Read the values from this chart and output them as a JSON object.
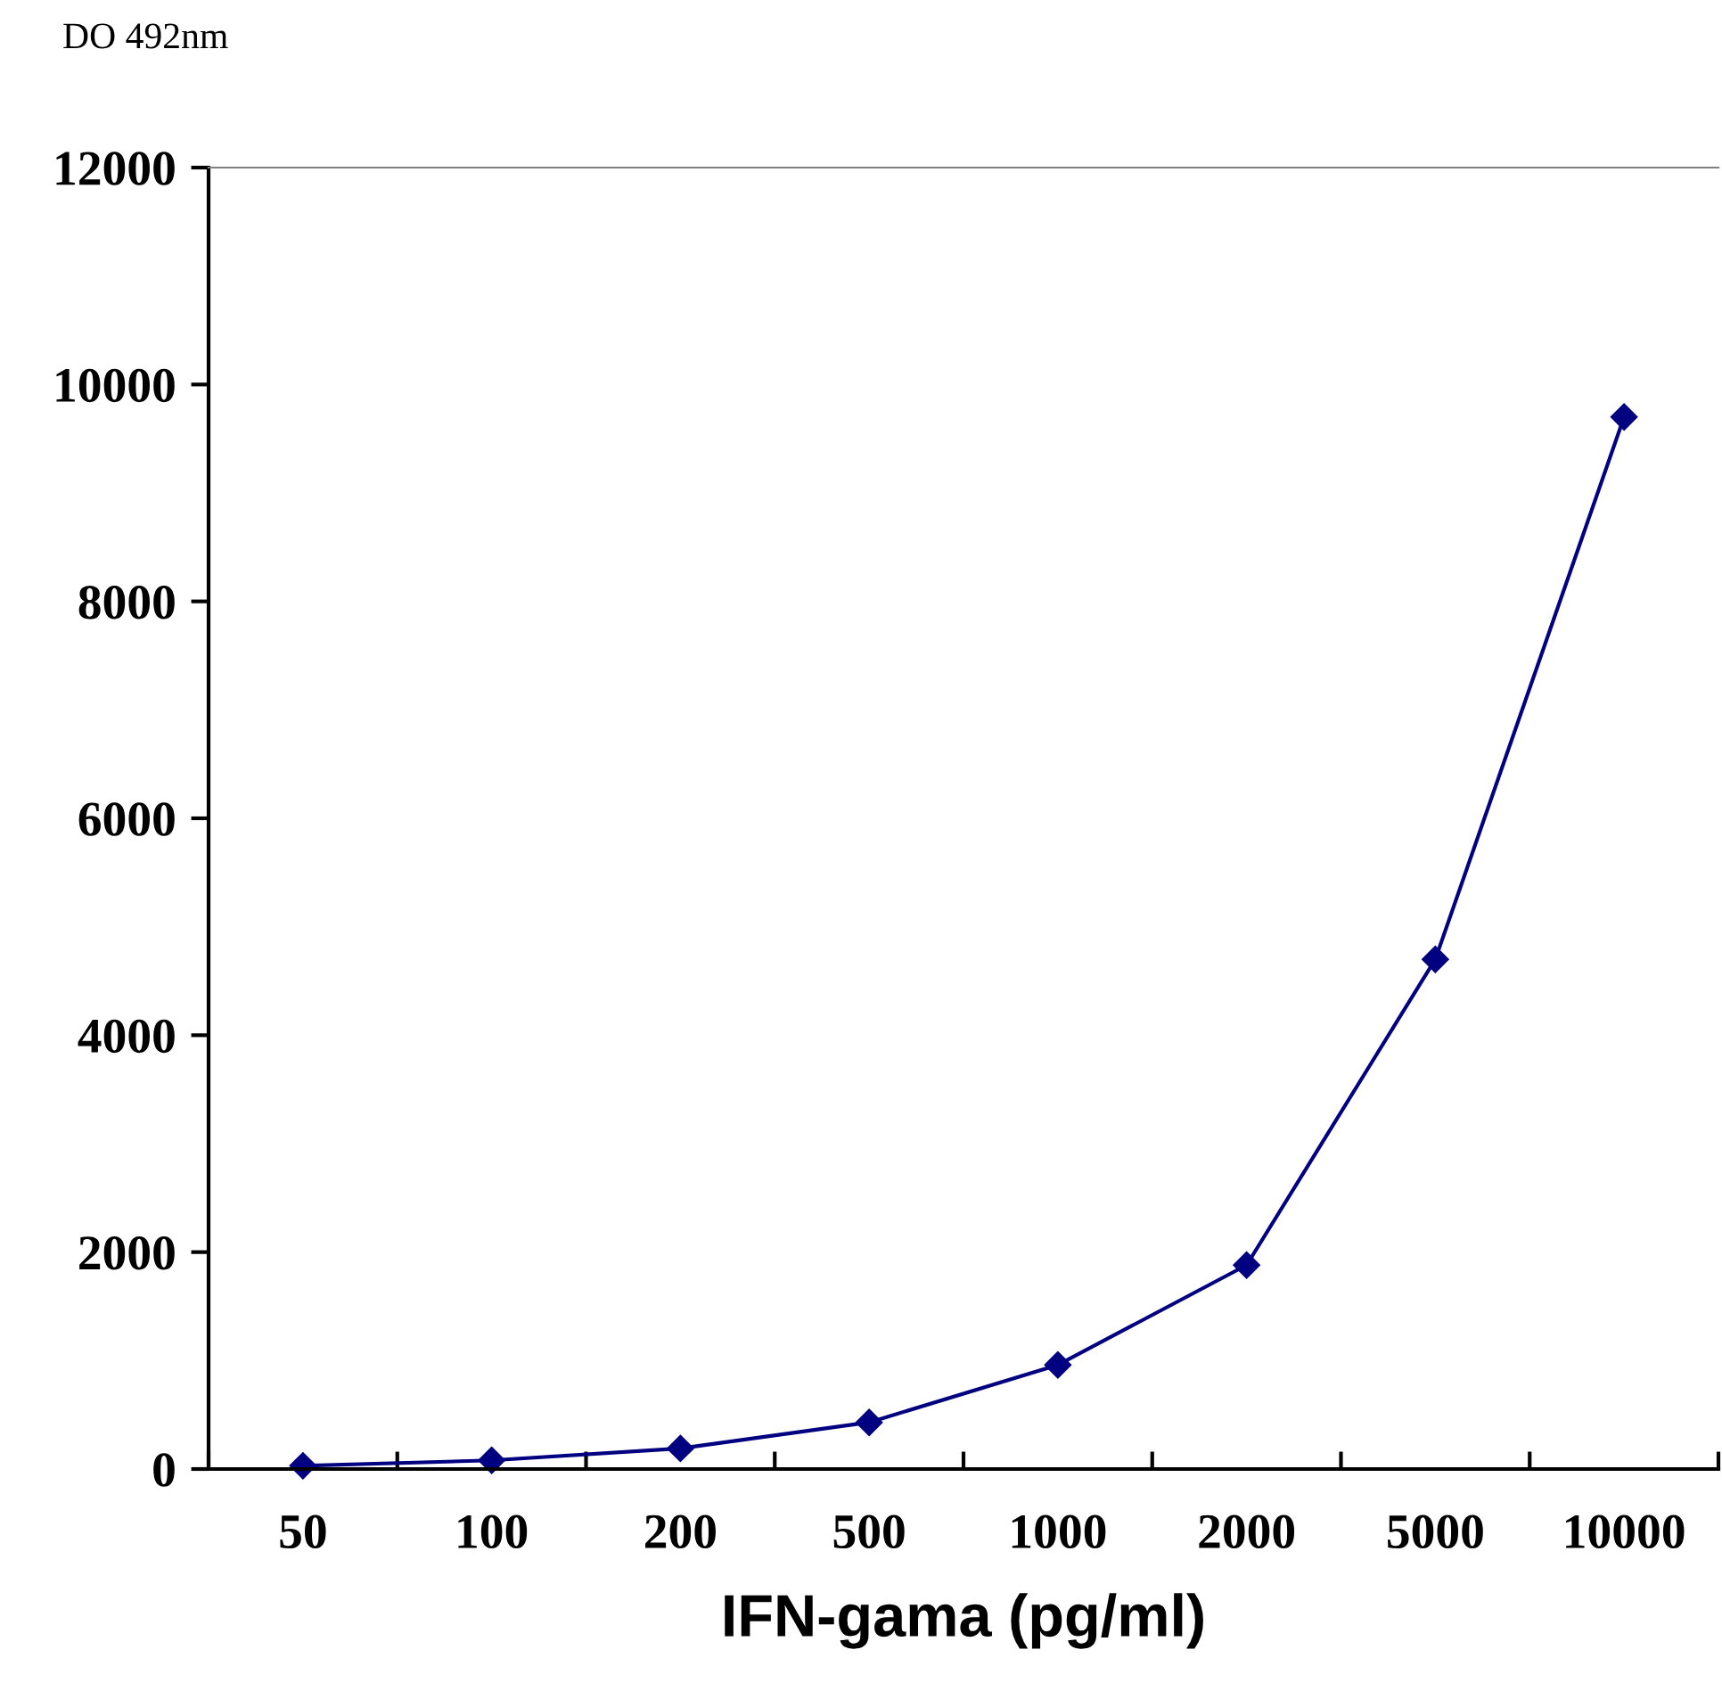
{
  "chart_data": {
    "type": "line",
    "ylabel": "DO 492nm",
    "xlabel": "IFN-gama (pg/ml)",
    "categories": [
      "50",
      "100",
      "200",
      "500",
      "1000",
      "2000",
      "5000",
      "10000"
    ],
    "series": [
      {
        "color": "#000080",
        "values": [
          30,
          80,
          190,
          430,
          960,
          1880,
          4700,
          9700
        ]
      }
    ],
    "ylim": [
      0,
      12000
    ],
    "yticks": [
      0,
      2000,
      4000,
      6000,
      8000,
      10000,
      12000
    ],
    "grid": false,
    "legend": false,
    "marker": "diamond",
    "line_style": "solid"
  }
}
